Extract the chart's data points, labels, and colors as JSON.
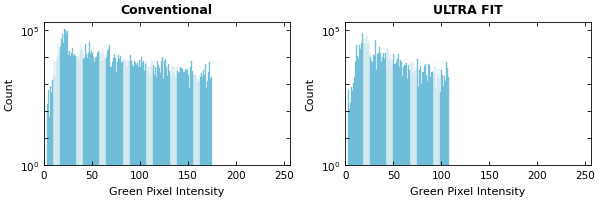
{
  "title_left": "Conventional",
  "title_right": "ULTRA FIT",
  "xlabel": "Green Pixel Intensity",
  "ylabel": "Count",
  "bar_color": "#7ec8e3",
  "bar_edge_color": "#5aafc8",
  "xlim": [
    0,
    256
  ],
  "ylim_log": [
    1,
    200000
  ],
  "xticks": [
    0,
    50,
    100,
    150,
    200,
    250
  ],
  "background_color": "#ffffff",
  "title_fontsize": 9,
  "title_left_bold": true,
  "title_right_bold": true,
  "label_fontsize": 8,
  "tick_fontsize": 7.5,
  "n_bins": 256
}
